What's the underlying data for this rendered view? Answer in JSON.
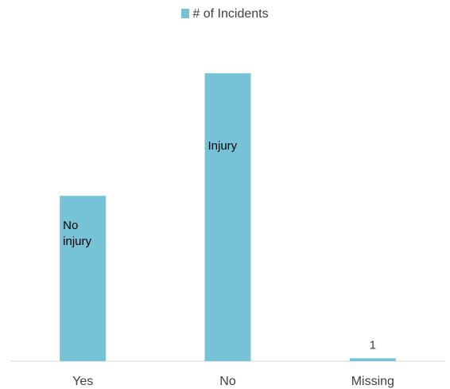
{
  "chart_data": {
    "type": "bar",
    "legend": "# of Incidents",
    "legend_position": "top",
    "categories": [
      "Yes",
      "No",
      "Missing"
    ],
    "series": [
      {
        "name": "# of Incidents",
        "values": [
          58,
          101,
          1
        ]
      }
    ],
    "bar_labels": [
      "No\ninjury",
      "Injury",
      "1"
    ],
    "ylim": [
      0,
      115
    ],
    "grid": false,
    "color": "#76C2D6"
  }
}
